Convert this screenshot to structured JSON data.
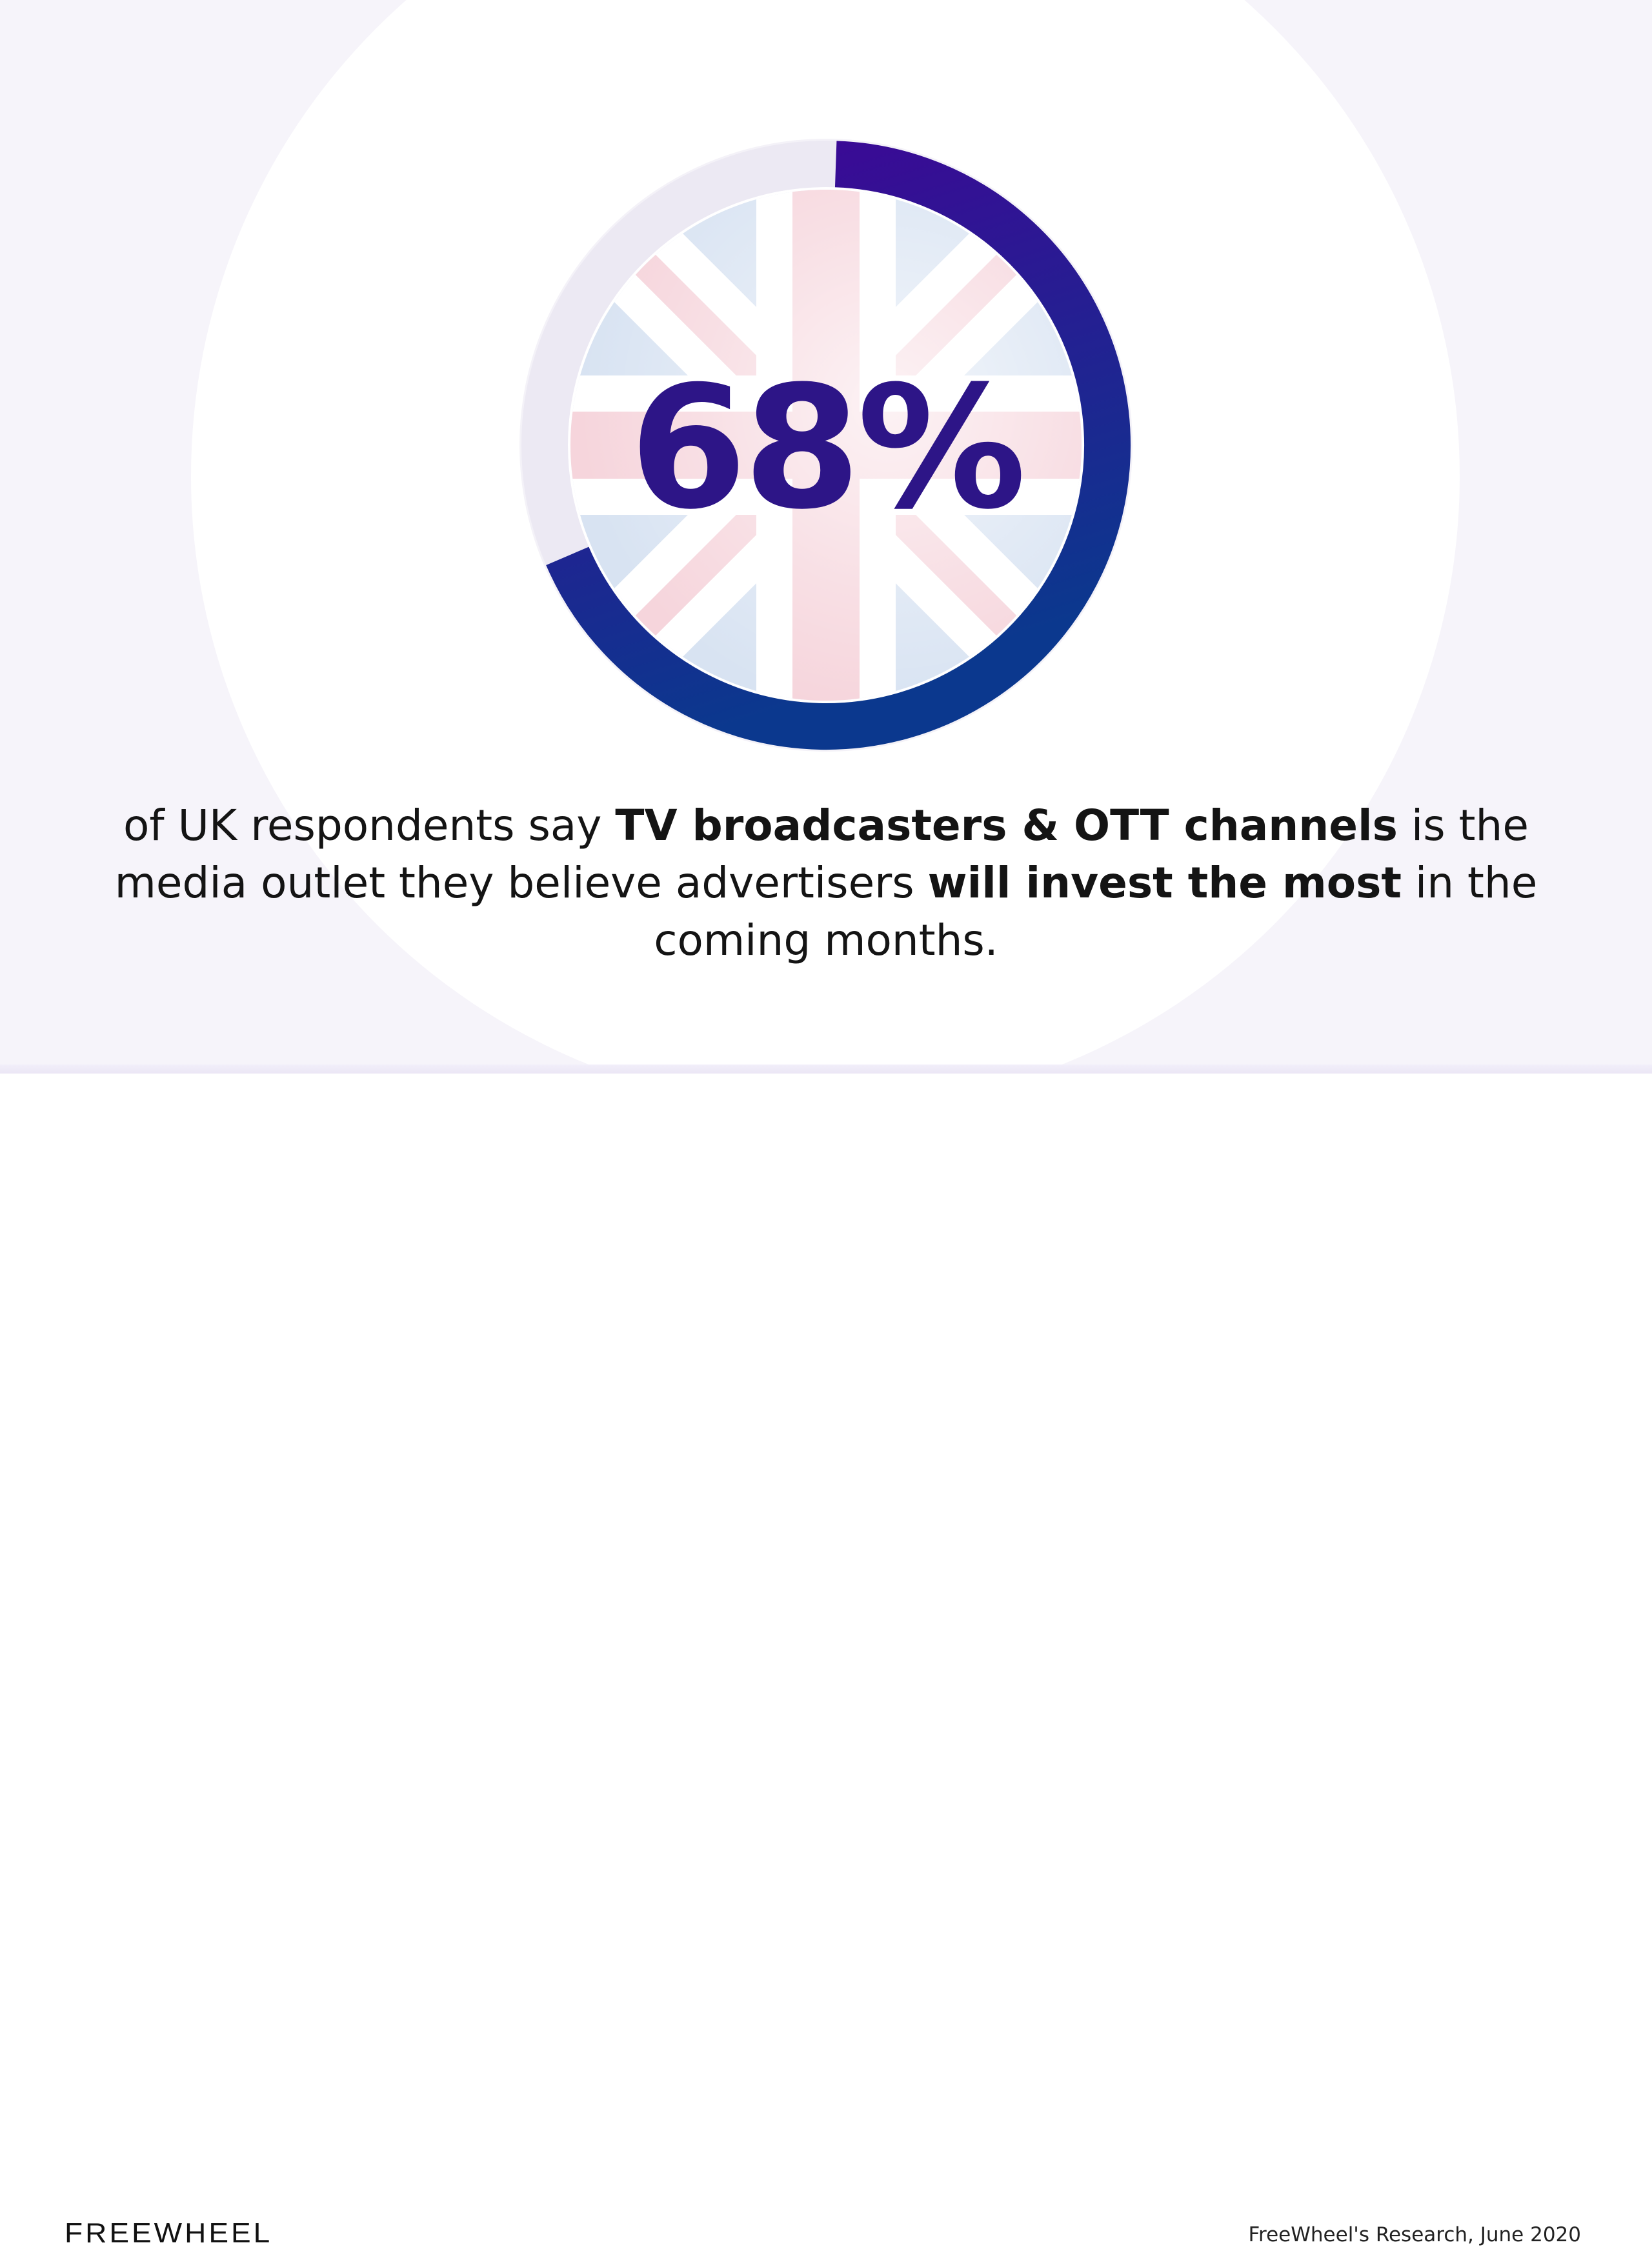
{
  "chart_data": {
    "type": "gauge",
    "value": 68,
    "max": 100,
    "label": "68%",
    "colors": {
      "progress_start": "#3f0596",
      "progress_end": "#0b388e",
      "track": "#ece9f3",
      "flag_red": "#f6d5dc",
      "flag_blue": "#d8e3f2"
    }
  },
  "caption": {
    "p1": "of UK respondents say ",
    "b1": "TV broadcasters & OTT channels",
    "p2": " is the media outlet they believe advertisers ",
    "b2": "will invest the most",
    "p3": " in the coming months."
  },
  "footer": {
    "logo": "FREEWHEEL",
    "source": "FreeWheel's Research, June 2020"
  }
}
